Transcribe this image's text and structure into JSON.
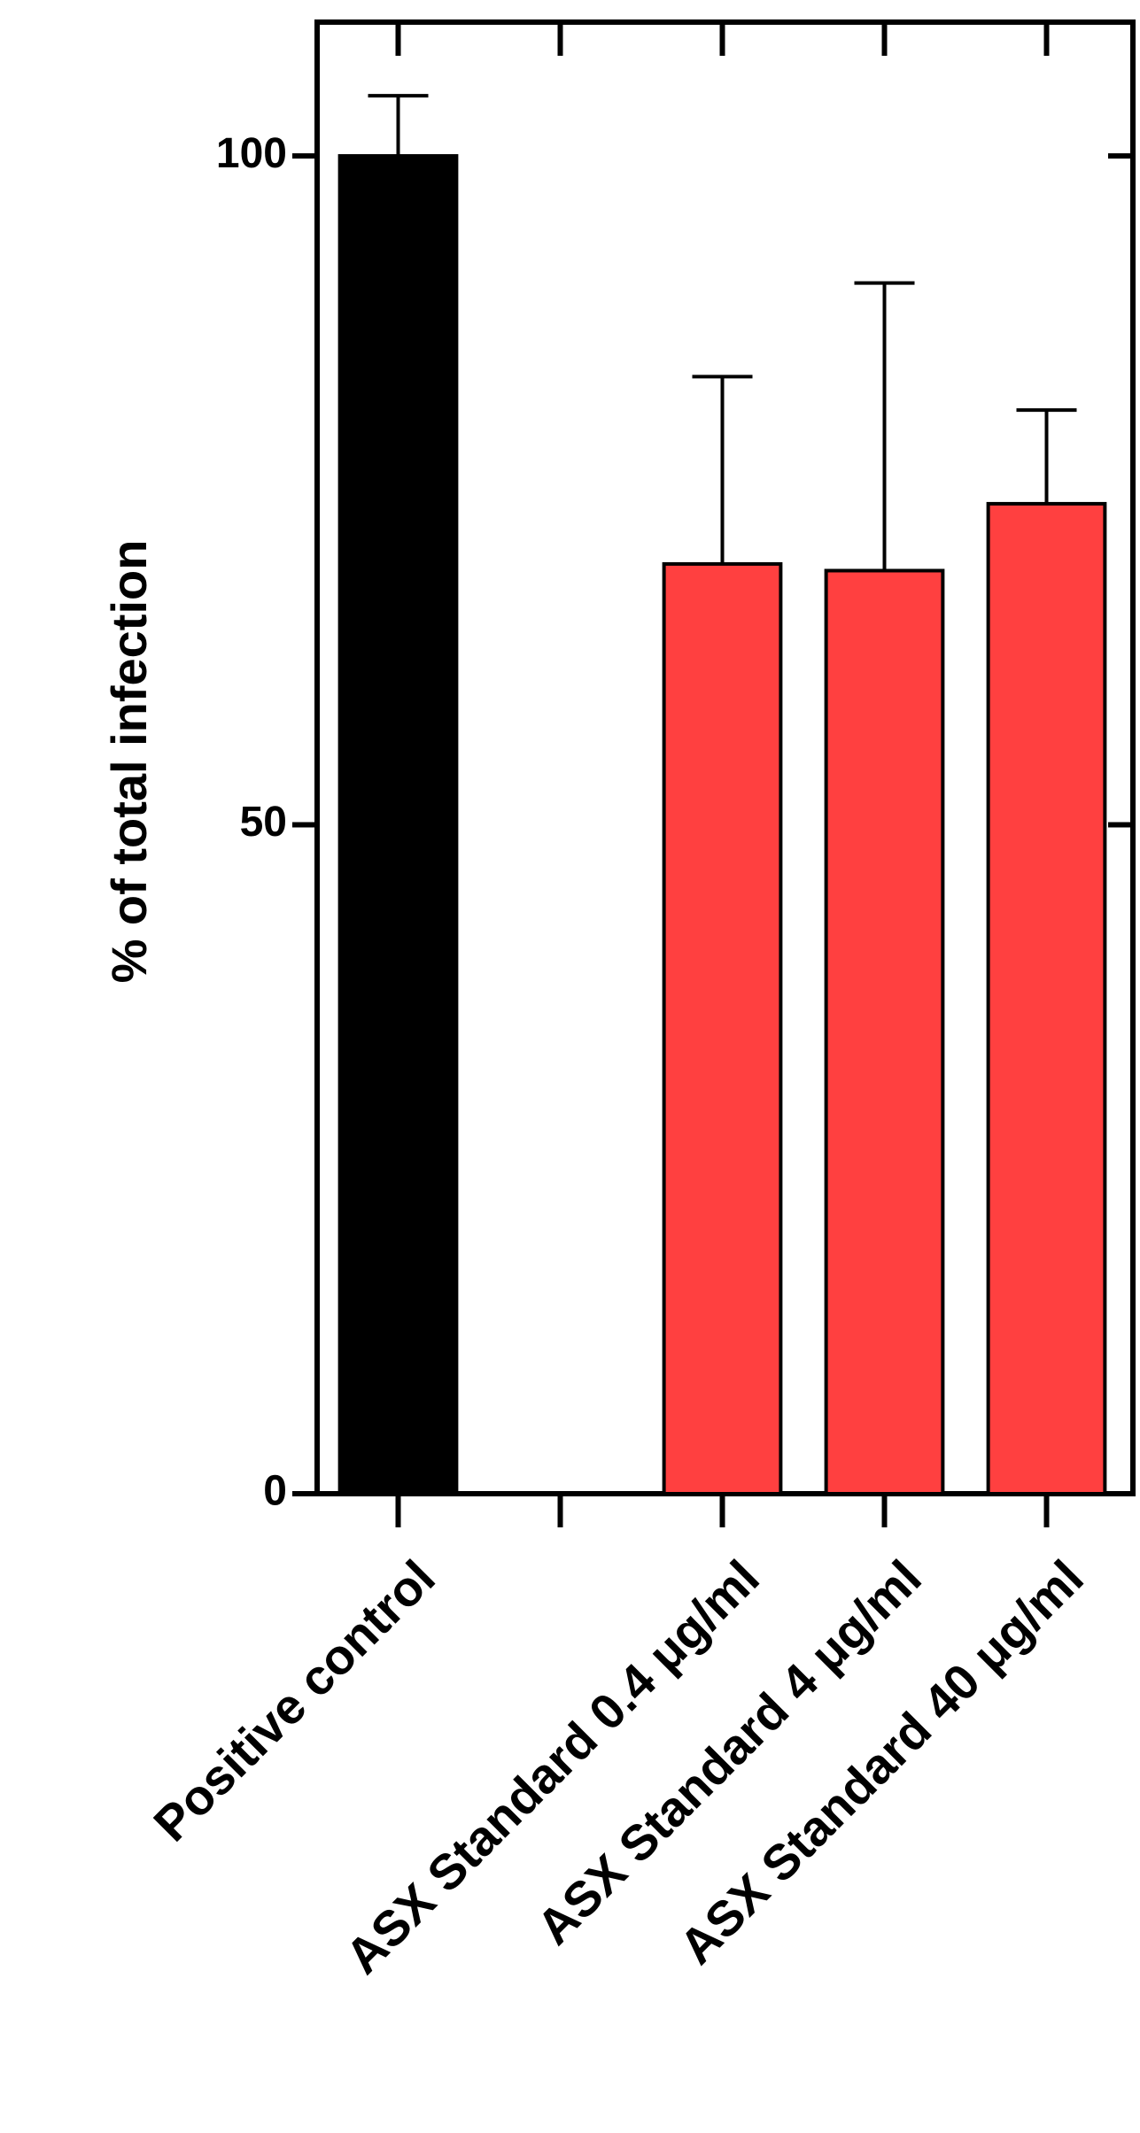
{
  "chart_data": {
    "type": "bar",
    "y_label": "% of total infection",
    "categories": [
      "Positive control",
      null,
      "ASX Standard 0.4 μg/ml",
      "ASX Standard 4 μg/ml",
      "ASX Standard 40 μg/ml"
    ],
    "values": [
      100,
      null,
      69.5,
      69,
      74
    ],
    "errors": [
      4.5,
      null,
      14,
      21.5,
      7
    ],
    "colors": [
      "#000000",
      null,
      "#ff4040",
      "#ff4040",
      "#ff4040"
    ],
    "ylim": [
      0,
      110
    ],
    "yticks": [
      0,
      50,
      100
    ],
    "grid": false
  }
}
